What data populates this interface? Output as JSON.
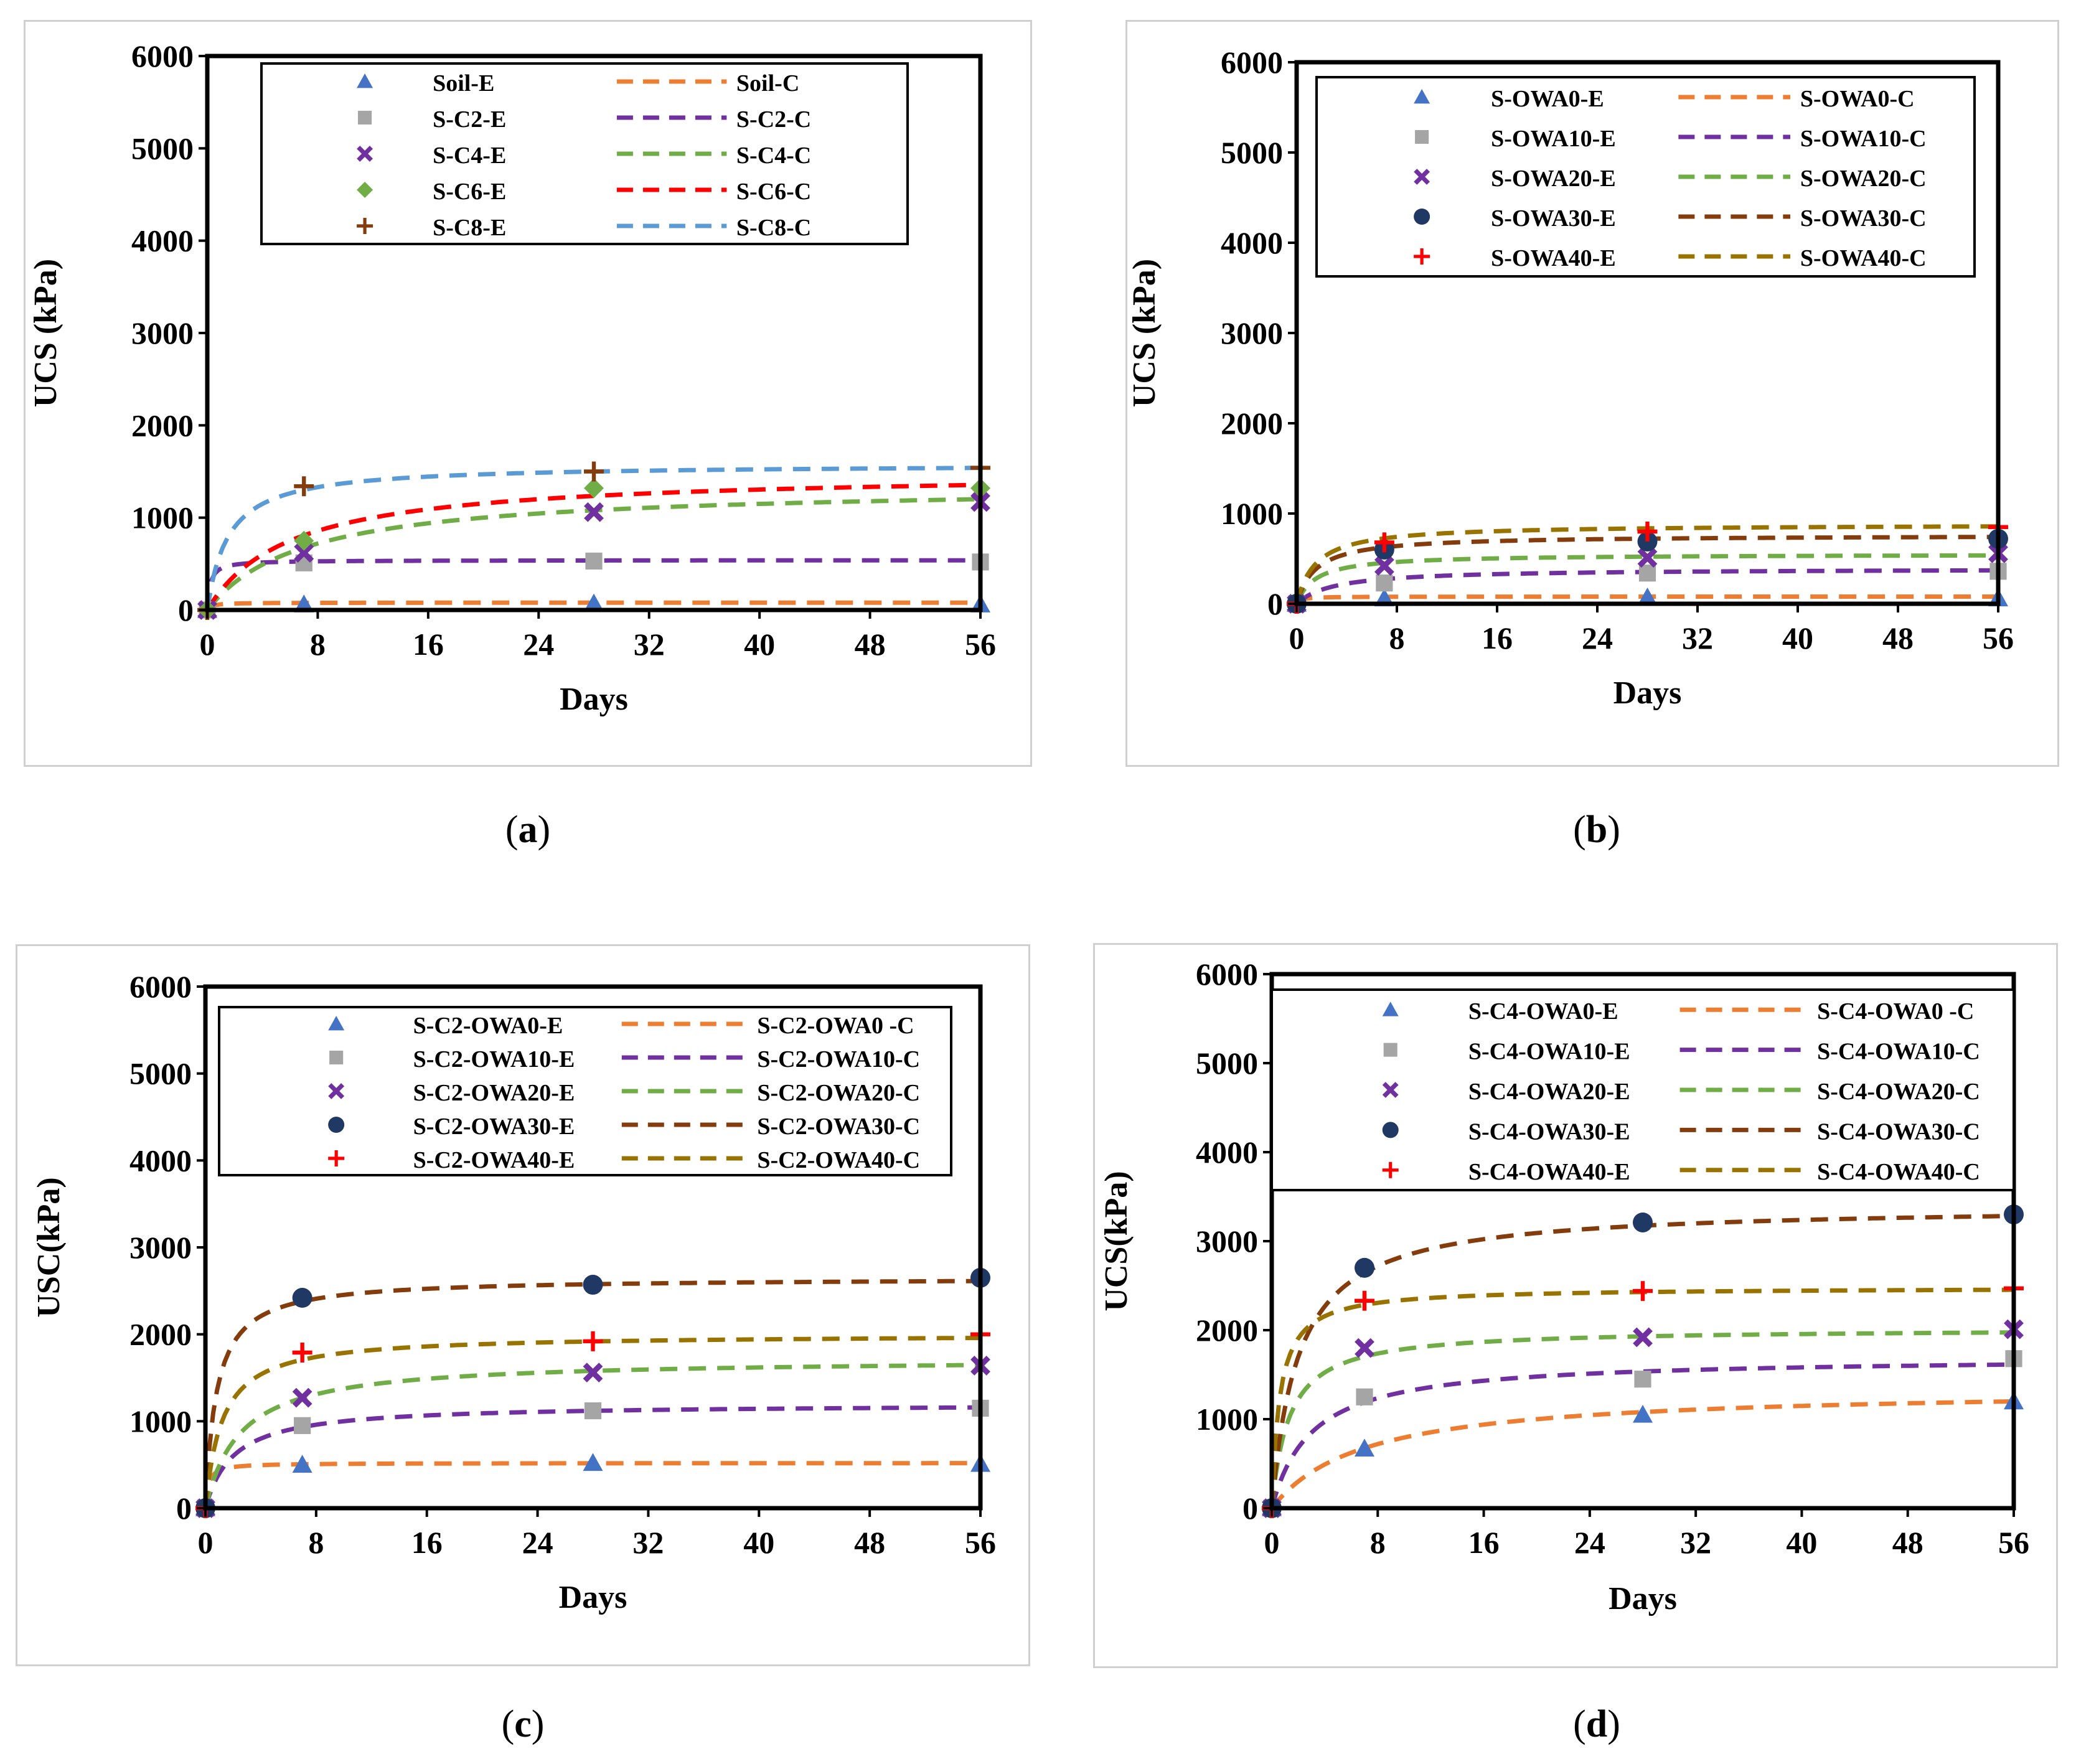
{
  "colors": {
    "blue": "#4472C4",
    "gray": "#A5A5A5",
    "purple": "#7030A0",
    "green": "#70AD47",
    "red": "#FF0000",
    "brown": "#843C0C",
    "orange": "#ED7D31",
    "sky": "#5B9BD5",
    "darkbrown": "#843C0C",
    "olive": "#997300",
    "navy": "#203864",
    "darkgreen": "#538135"
  },
  "chart_data": [
    {
      "id": "a",
      "type": "scatter",
      "caption_label": "a",
      "xlabel": "Days",
      "ylabel": "UCS (kPa)",
      "xlim": [
        0,
        56
      ],
      "ylim": [
        0,
        6000
      ],
      "xticks": [
        "0",
        "8",
        "16",
        "24",
        "32",
        "40",
        "48",
        "56"
      ],
      "yticks": [
        "0",
        "1000",
        "2000",
        "3000",
        "4000",
        "5000",
        "6000"
      ],
      "legend_rows": [
        {
          "e": "Soil-E",
          "c": "Soil-C"
        },
        {
          "e": "S-C2-E",
          "c": "S-C2-C"
        },
        {
          "e": "S-C4-E",
          "c": "S-C4-C"
        },
        {
          "e": "S-C6-E",
          "c": "S-C6-C"
        },
        {
          "e": "S-C8-E",
          "c": "S-C8-C"
        }
      ],
      "series": [
        {
          "name": "Soil",
          "marker": "triangle",
          "mcolor": "blue",
          "lcolor": "orange",
          "x": [
            0,
            7,
            28,
            56
          ],
          "y": [
            0,
            60,
            70,
            60
          ],
          "fit": {
            "a": 80,
            "b": 0.3
          }
        },
        {
          "name": "S-C2",
          "marker": "square",
          "mcolor": "gray",
          "lcolor": "purple",
          "x": [
            0,
            7,
            28,
            56
          ],
          "y": [
            0,
            510,
            530,
            520
          ],
          "fit": {
            "a": 540,
            "b": 0.2
          }
        },
        {
          "name": "S-C4",
          "marker": "x",
          "mcolor": "purple",
          "lcolor": "green",
          "x": [
            0,
            7,
            28,
            56
          ],
          "y": [
            0,
            620,
            1060,
            1170
          ],
          "fit": {
            "a": 1350,
            "b": 7
          }
        },
        {
          "name": "S-C6",
          "marker": "diamond",
          "mcolor": "green",
          "lcolor": "red",
          "x": [
            0,
            7,
            28,
            56
          ],
          "y": [
            0,
            750,
            1320,
            1320
          ],
          "fit": {
            "a": 1500,
            "b": 6
          }
        },
        {
          "name": "S-C8",
          "marker": "plus",
          "mcolor": "brown",
          "lcolor": "sky",
          "x": [
            0,
            7,
            28,
            56
          ],
          "y": [
            0,
            1340,
            1500,
            1540
          ],
          "fit": {
            "a": 1580,
            "b": 1.5
          }
        }
      ]
    },
    {
      "id": "b",
      "type": "scatter",
      "caption_label": "b",
      "xlabel": "Days",
      "ylabel": "UCS (kPa)",
      "xlim": [
        0,
        56
      ],
      "ylim": [
        0,
        6000
      ],
      "xticks": [
        "0",
        "8",
        "16",
        "24",
        "32",
        "40",
        "48",
        "56"
      ],
      "yticks": [
        "0",
        "1000",
        "2000",
        "3000",
        "4000",
        "5000",
        "6000"
      ],
      "legend_rows": [
        {
          "e": "S-OWA0-E",
          "c": "S-OWA0-C"
        },
        {
          "e": "S-OWA10-E",
          "c": "S-OWA10-C"
        },
        {
          "e": "S-OWA20-E",
          "c": "S-OWA20-C"
        },
        {
          "e": "S-OWA30-E",
          "c": "S-OWA30-C"
        },
        {
          "e": "S-OWA40-E",
          "c": "S-OWA40-C"
        }
      ],
      "series": [
        {
          "name": "S-OWA0",
          "marker": "triangle",
          "mcolor": "blue",
          "lcolor": "orange",
          "x": [
            0,
            7,
            28,
            56
          ],
          "y": [
            0,
            60,
            70,
            60
          ],
          "fit": {
            "a": 80,
            "b": 0.3
          }
        },
        {
          "name": "S-OWA10",
          "marker": "square",
          "mcolor": "gray",
          "lcolor": "purple",
          "x": [
            0,
            7,
            28,
            56
          ],
          "y": [
            0,
            230,
            340,
            360
          ],
          "fit": {
            "a": 390,
            "b": 3
          }
        },
        {
          "name": "S-OWA20",
          "marker": "x",
          "mcolor": "purple",
          "lcolor": "green",
          "x": [
            0,
            7,
            28,
            56
          ],
          "y": [
            0,
            420,
            510,
            560
          ],
          "fit": {
            "a": 550,
            "b": 1.5
          }
        },
        {
          "name": "S-OWA30",
          "marker": "circle",
          "mcolor": "navy",
          "lcolor": "darkbrown",
          "x": [
            0,
            7,
            28,
            56
          ],
          "y": [
            0,
            600,
            690,
            720
          ],
          "fit": {
            "a": 760,
            "b": 1.5
          }
        },
        {
          "name": "S-OWA40",
          "marker": "plus",
          "mcolor": "red",
          "lcolor": "olive",
          "x": [
            0,
            7,
            28,
            56
          ],
          "y": [
            0,
            680,
            800,
            850
          ],
          "fit": {
            "a": 880,
            "b": 1.5
          }
        }
      ]
    },
    {
      "id": "c",
      "type": "scatter",
      "caption_label": "c",
      "xlabel": "Days",
      "ylabel": "USC(kPa)",
      "xlim": [
        0,
        56
      ],
      "ylim": [
        0,
        6000
      ],
      "xticks": [
        "0",
        "8",
        "16",
        "24",
        "32",
        "40",
        "48",
        "56"
      ],
      "yticks": [
        "0",
        "1000",
        "2000",
        "3000",
        "4000",
        "5000",
        "6000"
      ],
      "legend_rows": [
        {
          "e": "S-C2-OWA0-E",
          "c": "S-C2-OWA0 -C"
        },
        {
          "e": "S-C2-OWA10-E",
          "c": "S-C2-OWA10-C"
        },
        {
          "e": "S-C2-OWA20-E",
          "c": "S-C2-OWA20-C"
        },
        {
          "e": "S-C2-OWA30-E",
          "c": "S-C2-OWA30-C"
        },
        {
          "e": "S-C2-OWA40-E",
          "c": "S-C2-OWA40-C"
        }
      ],
      "series": [
        {
          "name": "S-C2-OWA0",
          "marker": "triangle",
          "mcolor": "blue",
          "lcolor": "orange",
          "x": [
            0,
            7,
            28,
            56
          ],
          "y": [
            0,
            500,
            520,
            510
          ],
          "fit": {
            "a": 520,
            "b": 0.2
          }
        },
        {
          "name": "S-C2-OWA10",
          "marker": "square",
          "mcolor": "gray",
          "lcolor": "purple",
          "x": [
            0,
            7,
            28,
            56
          ],
          "y": [
            0,
            950,
            1120,
            1150
          ],
          "fit": {
            "a": 1200,
            "b": 2
          }
        },
        {
          "name": "S-C2-OWA20",
          "marker": "x",
          "mcolor": "purple",
          "lcolor": "green",
          "x": [
            0,
            7,
            28,
            56
          ],
          "y": [
            0,
            1270,
            1560,
            1640
          ],
          "fit": {
            "a": 1720,
            "b": 2.5
          }
        },
        {
          "name": "S-C2-OWA30",
          "marker": "circle",
          "mcolor": "navy",
          "lcolor": "darkbrown",
          "x": [
            0,
            7,
            28,
            56
          ],
          "y": [
            0,
            2420,
            2570,
            2650
          ],
          "fit": {
            "a": 2650,
            "b": 0.8
          }
        },
        {
          "name": "S-C2-OWA40",
          "marker": "plus",
          "mcolor": "red",
          "lcolor": "olive",
          "x": [
            0,
            7,
            28,
            56
          ],
          "y": [
            0,
            1790,
            1920,
            2000
          ],
          "fit": {
            "a": 2000,
            "b": 1.2
          }
        }
      ]
    },
    {
      "id": "d",
      "type": "scatter",
      "caption_label": "d",
      "xlabel": "Days",
      "ylabel": "UCS(kPa)",
      "xlim": [
        0,
        56
      ],
      "ylim": [
        0,
        6000
      ],
      "xticks": [
        "0",
        "8",
        "16",
        "24",
        "32",
        "40",
        "48",
        "56"
      ],
      "yticks": [
        "0",
        "1000",
        "2000",
        "3000",
        "4000",
        "5000",
        "6000"
      ],
      "legend_rows": [
        {
          "e": "S-C4-OWA0-E",
          "c": "S-C4-OWA0 -C"
        },
        {
          "e": "S-C4-OWA10-E",
          "c": "S-C4-OWA10-C"
        },
        {
          "e": "S-C4-OWA20-E",
          "c": "S-C4-OWA20-C"
        },
        {
          "e": "S-C4-OWA30-E",
          "c": "S-C4-OWA30-C"
        },
        {
          "e": "S-C4-OWA40-E",
          "c": "S-C4-OWA40-C"
        }
      ],
      "series": [
        {
          "name": "S-C4-OWA0",
          "marker": "triangle",
          "mcolor": "blue",
          "lcolor": "orange",
          "x": [
            0,
            7,
            28,
            56
          ],
          "y": [
            0,
            670,
            1050,
            1200
          ],
          "fit": {
            "a": 1350,
            "b": 7
          }
        },
        {
          "name": "S-C4-OWA10",
          "marker": "square",
          "mcolor": "gray",
          "lcolor": "purple",
          "x": [
            0,
            7,
            28,
            56
          ],
          "y": [
            0,
            1250,
            1450,
            1680
          ],
          "fit": {
            "a": 1700,
            "b": 3
          }
        },
        {
          "name": "S-C4-OWA20",
          "marker": "x",
          "mcolor": "purple",
          "lcolor": "green",
          "x": [
            0,
            7,
            28,
            56
          ],
          "y": [
            0,
            1800,
            1920,
            2010
          ],
          "fit": {
            "a": 2020,
            "b": 1.3
          }
        },
        {
          "name": "S-C4-OWA30",
          "marker": "circle",
          "mcolor": "navy",
          "lcolor": "darkbrown",
          "x": [
            0,
            7,
            28,
            56
          ],
          "y": [
            0,
            2700,
            3210,
            3300
          ],
          "fit": {
            "a": 3400,
            "b": 2
          }
        },
        {
          "name": "S-C4-OWA40",
          "marker": "plus",
          "mcolor": "red",
          "lcolor": "olive",
          "x": [
            0,
            7,
            28,
            56
          ],
          "y": [
            0,
            2330,
            2440,
            2470
          ],
          "fit": {
            "a": 2480,
            "b": 0.6
          }
        }
      ]
    }
  ]
}
